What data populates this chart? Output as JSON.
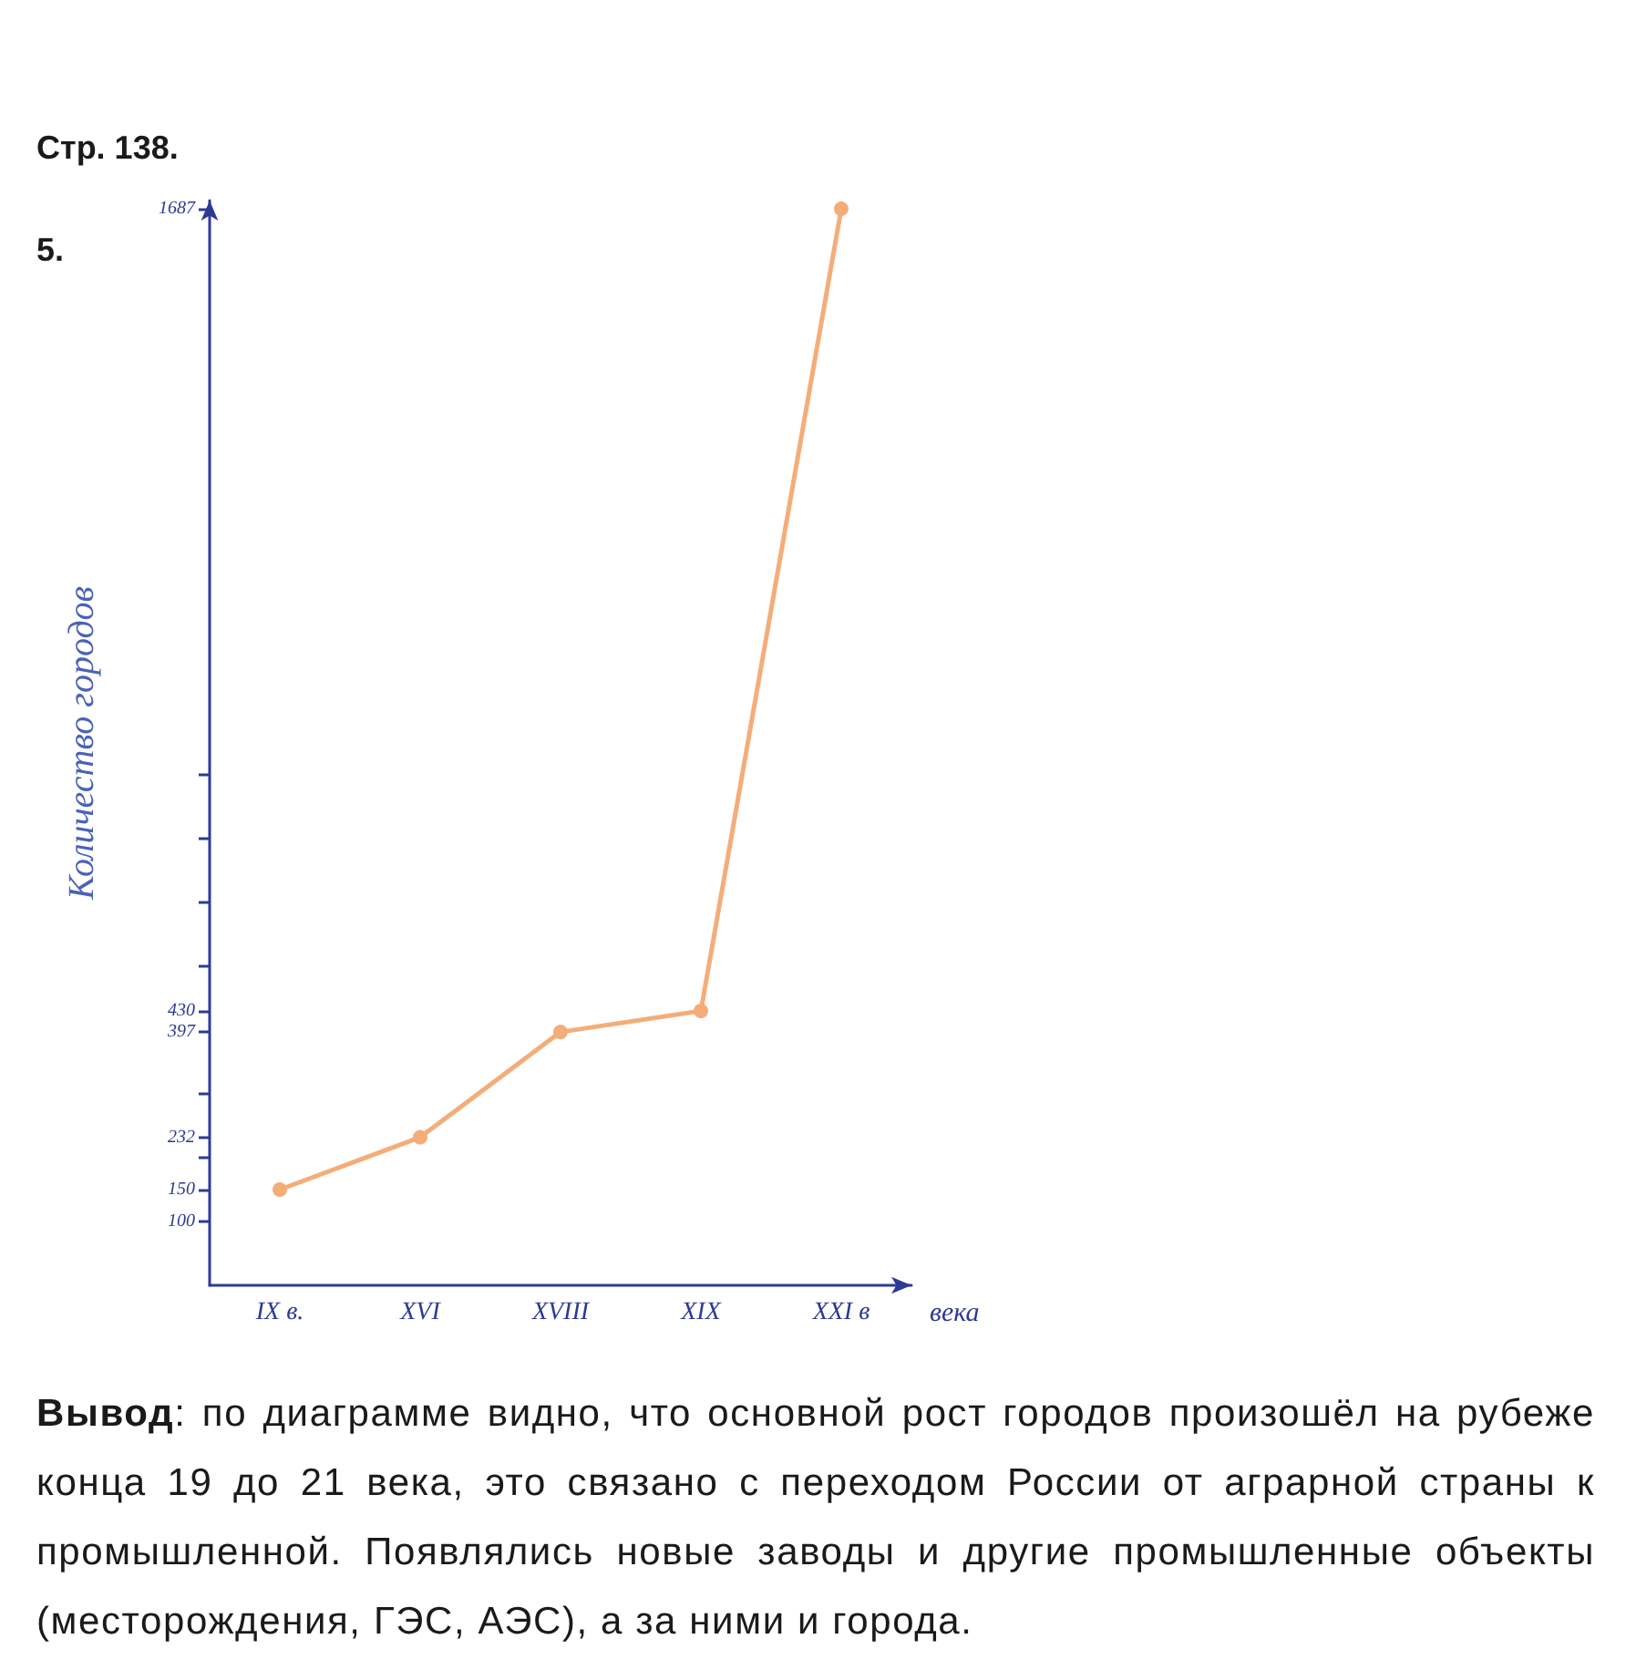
{
  "chart_data": {
    "type": "line",
    "title": "Стр. 138.",
    "subtitle": "5.",
    "xlabel": "века",
    "ylabel": "Количество городов",
    "categories": [
      "IX в.",
      "XVI",
      "XVIII",
      "XIX",
      "XXI в"
    ],
    "series": [
      {
        "color": "#f4ad78",
        "values": [
          150,
          232,
          397,
          430,
          1687
        ]
      }
    ],
    "ylim": [
      0,
      1700
    ],
    "yticks": [
      100,
      150,
      {
        "value": 200,
        "label": null
      },
      232,
      {
        "value": 300,
        "label": null
      },
      397,
      430,
      {
        "value": 500,
        "label": null
      },
      {
        "value": 600,
        "label": null
      },
      {
        "value": 700,
        "label": null
      },
      {
        "value": 800,
        "label": null
      },
      1687
    ],
    "marker": "circle",
    "line_style": "solid",
    "annotations": [
      "Вывод: по диаграмме видно, что основной рост городов произошёл на рубеже конца 19 до 21 века, это связано с переходом России от аграрной страны к промышленной. Появлялись новые заводы и другие промышленные объекты (месторождения, ГЭС, АЭС), а за ними и города."
    ]
  }
}
